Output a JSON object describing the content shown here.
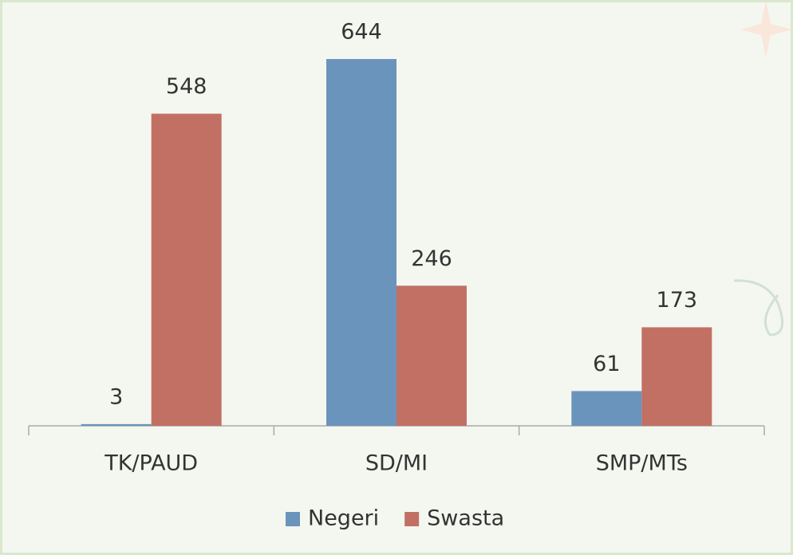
{
  "chart_data": {
    "type": "bar",
    "categories": [
      "TK/PAUD",
      "SD/MI",
      "SMP/MTs"
    ],
    "series": [
      {
        "name": "Negeri",
        "color": "#6b94bc",
        "values": [
          3,
          644,
          61
        ]
      },
      {
        "name": "Swasta",
        "color": "#c27064",
        "values": [
          548,
          246,
          173
        ]
      }
    ],
    "ylim": [
      0,
      700
    ],
    "legend": "bottom"
  }
}
